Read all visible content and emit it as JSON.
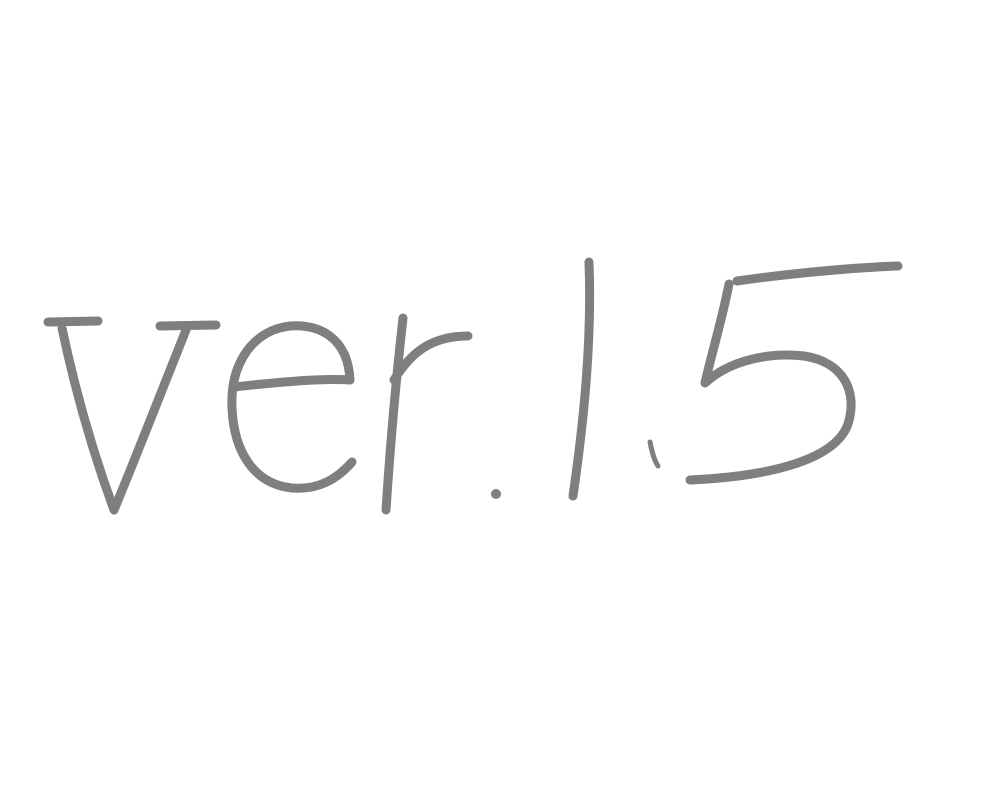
{
  "sketch": {
    "text": "ver.1.5",
    "stroke_color": "#7f7f7f",
    "background": "#ffffff"
  }
}
